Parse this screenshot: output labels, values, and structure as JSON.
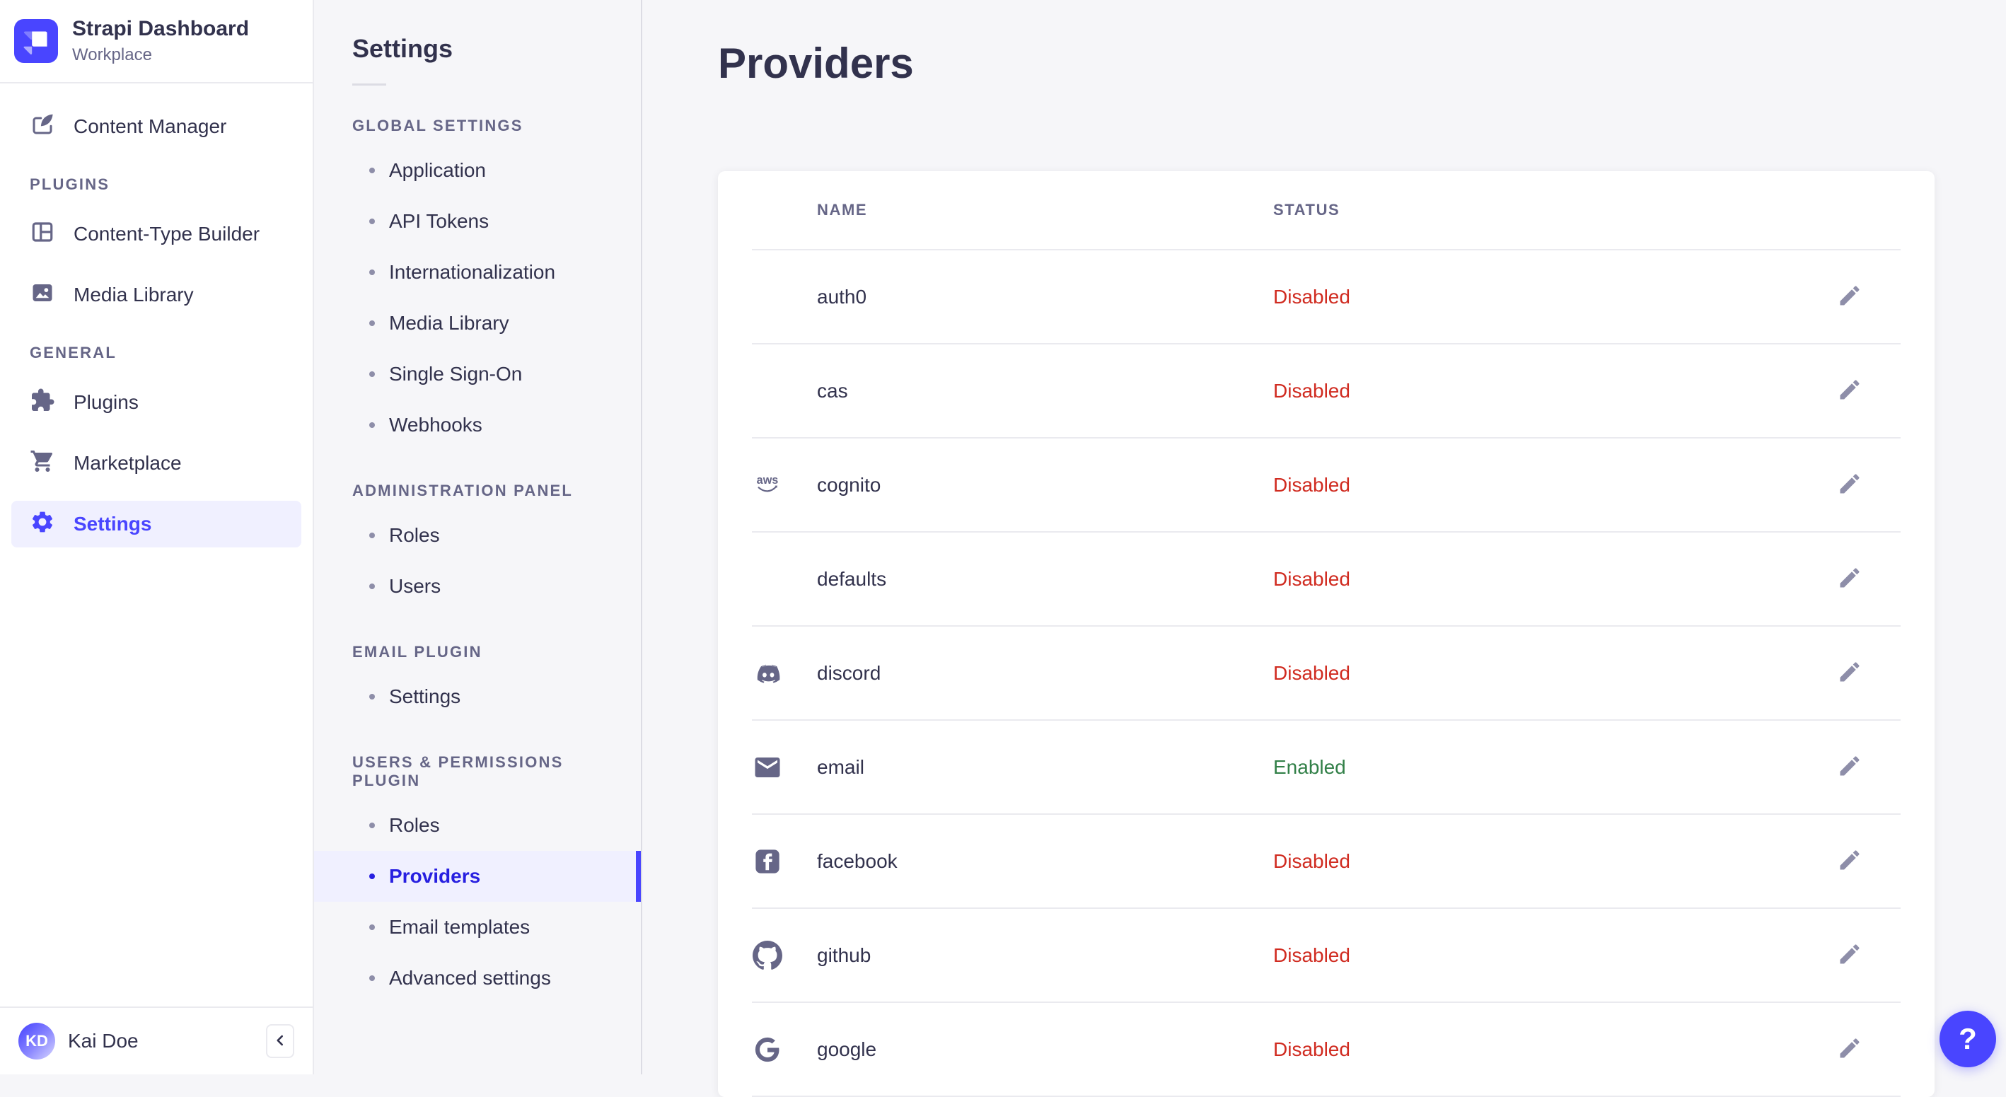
{
  "brand": {
    "title": "Strapi Dashboard",
    "subtitle": "Workplace",
    "logo_icon": "strapi-logo"
  },
  "main_nav": {
    "items": [
      {
        "label": "Content Manager",
        "icon": "content-manager-icon"
      }
    ],
    "sections": [
      {
        "label": "PLUGINS",
        "items": [
          {
            "label": "Content-Type Builder",
            "icon": "content-type-builder-icon"
          },
          {
            "label": "Media Library",
            "icon": "media-library-icon"
          }
        ]
      },
      {
        "label": "GENERAL",
        "items": [
          {
            "label": "Plugins",
            "icon": "plugins-icon"
          },
          {
            "label": "Marketplace",
            "icon": "marketplace-icon"
          },
          {
            "label": "Settings",
            "icon": "settings-icon",
            "active": true
          }
        ]
      }
    ],
    "user": {
      "initials": "KD",
      "name": "Kai Doe"
    }
  },
  "subnav": {
    "title": "Settings",
    "sections": [
      {
        "label": "GLOBAL SETTINGS",
        "items": [
          "Application",
          "API Tokens",
          "Internationalization",
          "Media Library",
          "Single Sign-On",
          "Webhooks"
        ]
      },
      {
        "label": "ADMINISTRATION PANEL",
        "items": [
          "Roles",
          "Users"
        ]
      },
      {
        "label": "EMAIL PLUGIN",
        "items": [
          "Settings"
        ]
      },
      {
        "label": "USERS & PERMISSIONS PLUGIN",
        "items": [
          "Roles",
          "Providers",
          "Email templates",
          "Advanced settings"
        ],
        "active_item": "Providers"
      }
    ]
  },
  "main": {
    "title": "Providers",
    "table": {
      "columns": [
        "NAME",
        "STATUS"
      ],
      "rows": [
        {
          "name": "auth0",
          "icon": null,
          "status": "Disabled"
        },
        {
          "name": "cas",
          "icon": null,
          "status": "Disabled"
        },
        {
          "name": "cognito",
          "icon": "aws-icon",
          "status": "Disabled"
        },
        {
          "name": "defaults",
          "icon": null,
          "status": "Disabled"
        },
        {
          "name": "discord",
          "icon": "discord-icon",
          "status": "Disabled"
        },
        {
          "name": "email",
          "icon": "email-icon",
          "status": "Enabled"
        },
        {
          "name": "facebook",
          "icon": "facebook-icon",
          "status": "Disabled"
        },
        {
          "name": "github",
          "icon": "github-icon",
          "status": "Disabled"
        },
        {
          "name": "google",
          "icon": "google-icon",
          "status": "Disabled"
        }
      ]
    }
  },
  "help": {
    "label": "?"
  },
  "colors": {
    "primary": "#4945ff",
    "primary_dark": "#271fe0",
    "primary_bg": "#f0f0ff",
    "danger": "#d02b20",
    "success": "#328048",
    "text_dark": "#32324d",
    "text_gray": "#666687"
  }
}
